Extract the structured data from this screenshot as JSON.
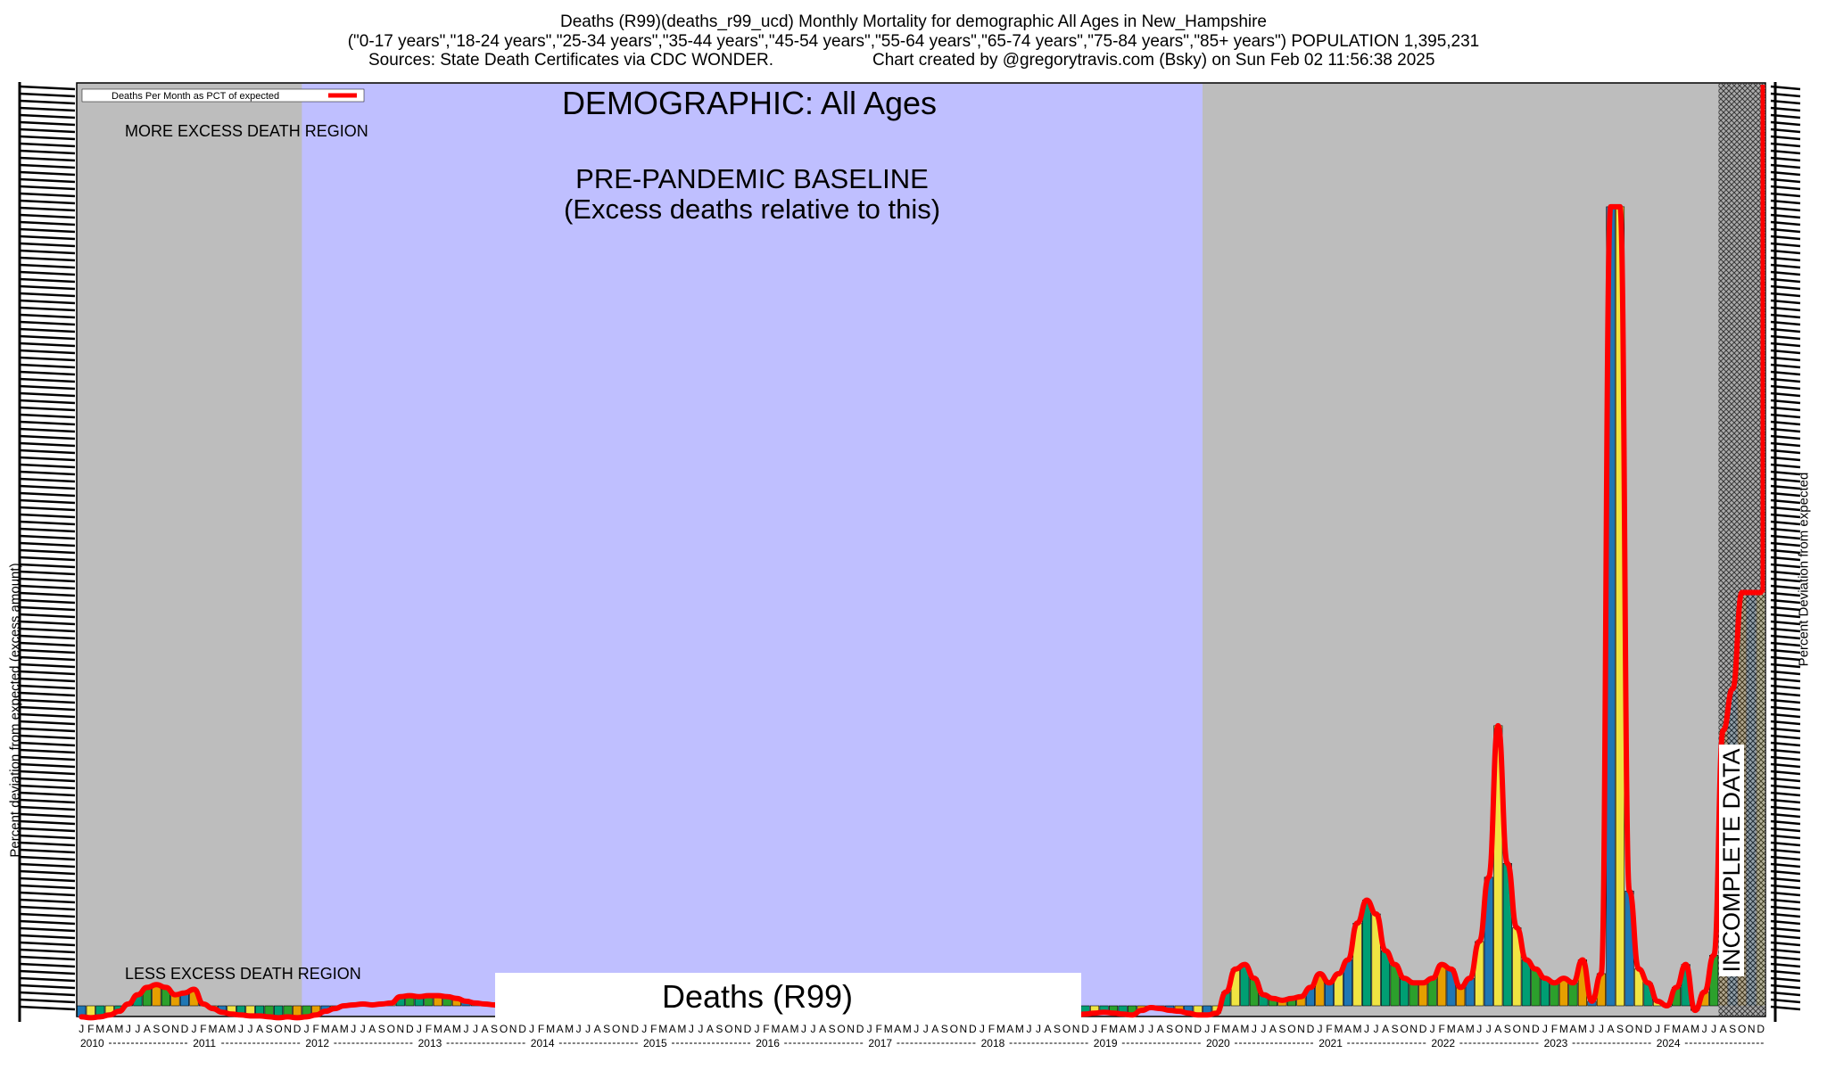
{
  "header": {
    "line1": "Deaths (R99)(deaths_r99_ucd) Monthly Mortality for demographic All Ages in New_Hampshire",
    "line2": "(\"0-17 years\",\"18-24 years\",\"25-34 years\",\"35-44 years\",\"45-54 years\",\"55-64 years\",\"65-74 years\",\"75-84 years\",\"85+ years\") POPULATION 1,395,231",
    "line3_left": "Sources: State Death Certificates via CDC WONDER.",
    "line3_right": "Chart created by @gregorytravis.com (Bsky) on Sun Feb 02 11:56:38 2025"
  },
  "chart_data": {
    "type": "bar",
    "demographic_title": "DEMOGRAPHIC: All Ages",
    "baseline_label_1": "PRE-PANDEMIC BASELINE",
    "baseline_label_2": "(Excess deaths relative to this)",
    "more_region_label": "MORE EXCESS DEATH REGION",
    "less_region_label": "LESS EXCESS DEATH REGION",
    "incomplete_label": "INCOMPLETE DATA",
    "cause_label": "Deaths (R99)",
    "legend_label": "Deaths Per Month as PCT of expected",
    "ylabel_left": "Percent deviation from expected (excess amount)",
    "ylabel_right": "Percent Deviation from expected",
    "years": [
      "2010",
      "2011",
      "2012",
      "2013",
      "2014",
      "2015",
      "2016",
      "2017",
      "2018",
      "2019",
      "2020",
      "2021",
      "2022",
      "2023",
      "2024"
    ],
    "month_letters": [
      "J",
      "F",
      "M",
      "A",
      "M",
      "J",
      "J",
      "A",
      "S",
      "O",
      "N",
      "D"
    ],
    "baseline_years": [
      "2012",
      "2013",
      "2014",
      "2015",
      "2016",
      "2017",
      "2018",
      "2019"
    ],
    "incomplete_months": [
      "2024-08",
      "2024-09",
      "2024-10",
      "2024-11",
      "2024-12"
    ],
    "ylim": [
      -1.5,
      100
    ],
    "colors": {
      "background": "#bdbdbd",
      "baseline": "#bfbfff",
      "line": "#ff0000",
      "bar_palette": [
        "#1f77b4",
        "#2ca02c",
        "#f0e442",
        "#e69f00",
        "#009e73"
      ]
    },
    "series": [
      {
        "name": "Deaths Per Month as PCT of expected",
        "values": [
          -1.2,
          -1.3,
          -1.2,
          -1.0,
          -0.6,
          0.2,
          1.2,
          2.0,
          2.3,
          2.0,
          1.2,
          1.4,
          1.8,
          0.2,
          -0.3,
          -0.7,
          -0.9,
          -1.0,
          -1.1,
          -1.1,
          -1.2,
          -1.3,
          -1.2,
          -1.3,
          -1.2,
          -1.0,
          -0.6,
          -0.3,
          0.0,
          0.1,
          0.2,
          0.1,
          0.2,
          0.3,
          1.0,
          1.1,
          1.0,
          1.1,
          1.1,
          1.0,
          0.8,
          0.5,
          0.3,
          0.2,
          0.1,
          0.0,
          -0.1,
          0.0,
          0.0,
          0.1,
          0.0,
          0.0,
          0.1,
          0.0,
          0.0,
          0.1,
          0.0,
          0.0,
          0.1,
          0.0,
          0.0,
          0.0,
          0.1,
          0.0,
          0.0,
          0.0,
          0.1,
          0.0,
          0.0,
          0.0,
          0.0,
          0.0,
          0.0,
          0.0,
          0.0,
          0.0,
          0.1,
          0.0,
          0.0,
          0.0,
          0.0,
          0.0,
          0.0,
          0.0,
          0.0,
          0.0,
          0.0,
          0.0,
          0.0,
          0.0,
          0.0,
          0.0,
          0.0,
          0.0,
          0.0,
          0.0,
          0.0,
          0.0,
          0.0,
          0.0,
          0.0,
          0.0,
          -0.2,
          -0.5,
          -0.8,
          -1.0,
          -1.0,
          -0.9,
          -0.8,
          -0.7,
          -0.8,
          -0.9,
          -1.0,
          -0.5,
          -0.2,
          -0.3,
          -0.5,
          -0.6,
          -0.8,
          -1.0,
          -1.0,
          -0.8,
          1.5,
          4.0,
          4.5,
          3.0,
          1.2,
          0.8,
          0.6,
          0.8,
          1.0,
          2.0,
          3.5,
          2.5,
          3.5,
          5.0,
          9.0,
          11.5,
          10.0,
          6.0,
          4.5,
          3.0,
          2.5,
          2.5,
          3.0,
          4.5,
          4.0,
          2.0,
          3.0,
          7.0,
          14.0,
          30.5,
          15.5,
          8.5,
          5.0,
          4.0,
          3.0,
          2.5,
          3.0,
          2.5,
          5.0,
          0.5,
          3.5,
          87.0,
          87.0,
          12.5,
          4.0,
          2.5,
          0.5,
          0.0,
          2.0,
          4.5,
          -0.5,
          1.5,
          5.5,
          30.0,
          34.5,
          45.0,
          45.0,
          45.0
        ]
      }
    ]
  }
}
